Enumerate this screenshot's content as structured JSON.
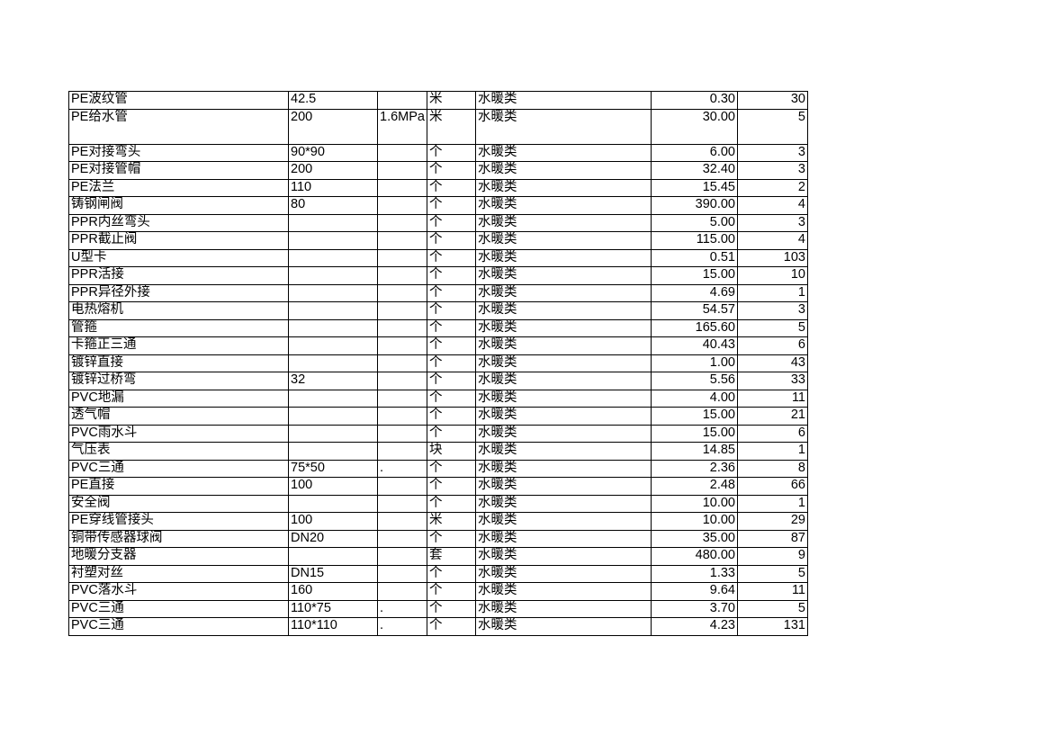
{
  "rows": [
    [
      "PE波纹管",
      "42.5",
      "",
      "米",
      "水暖类",
      "0.30",
      "30"
    ],
    [
      "PE给水管",
      "200",
      "1.6MPa",
      "米",
      "水暖类",
      "30.00",
      "5"
    ],
    [
      "PE对接弯头",
      "90*90",
      "",
      "个",
      "水暖类",
      "6.00",
      "3"
    ],
    [
      "PE对接管帽",
      "200",
      "",
      "个",
      "水暖类",
      "32.40",
      "3"
    ],
    [
      "PE法兰",
      "110",
      "",
      "个",
      "水暖类",
      "15.45",
      "2"
    ],
    [
      "铸钢闸阀",
      "80",
      "",
      "个",
      "水暖类",
      "390.00",
      "4"
    ],
    [
      "PPR内丝弯头",
      "",
      "",
      "个",
      "水暖类",
      "5.00",
      "3"
    ],
    [
      "PPR截止阀",
      "",
      "",
      "个",
      "水暖类",
      "115.00",
      "4"
    ],
    [
      "U型卡",
      "",
      "",
      "个",
      "水暖类",
      "0.51",
      "103"
    ],
    [
      "PPR活接",
      "",
      "",
      "个",
      "水暖类",
      "15.00",
      "10"
    ],
    [
      "PPR异径外接",
      "",
      "",
      "个",
      "水暖类",
      "4.69",
      "1"
    ],
    [
      "电热熔机",
      "",
      "",
      "个",
      "水暖类",
      "54.57",
      "3"
    ],
    [
      "管箍",
      "",
      "",
      "个",
      "水暖类",
      "165.60",
      "5"
    ],
    [
      "卡箍正三通",
      "",
      "",
      "个",
      "水暖类",
      "40.43",
      "6"
    ],
    [
      "镀锌直接",
      "",
      "",
      "个",
      "水暖类",
      "1.00",
      "43"
    ],
    [
      "镀锌过桥弯",
      "32",
      "",
      "个",
      "水暖类",
      "5.56",
      "33"
    ],
    [
      "PVC地漏",
      "",
      "",
      "个",
      "水暖类",
      "4.00",
      "11"
    ],
    [
      "透气帽",
      "",
      "",
      "个",
      "水暖类",
      "15.00",
      "21"
    ],
    [
      "PVC雨水斗",
      "",
      "",
      "个",
      "水暖类",
      "15.00",
      "6"
    ],
    [
      "气压表",
      "",
      "",
      "块",
      "水暖类",
      "14.85",
      "1"
    ],
    [
      "PVC三通",
      "75*50",
      ".",
      "个",
      "水暖类",
      "2.36",
      "8"
    ],
    [
      "PE直接",
      "100",
      "",
      "个",
      "水暖类",
      "2.48",
      "66"
    ],
    [
      "安全阀",
      "",
      "",
      "个",
      "水暖类",
      "10.00",
      "1"
    ],
    [
      "PE穿线管接头",
      "100",
      "",
      "米",
      "水暖类",
      "10.00",
      "29"
    ],
    [
      "铜带传感器球阀",
      "DN20",
      "",
      "个",
      "水暖类",
      "35.00",
      "87"
    ],
    [
      "地暖分支器",
      "",
      "",
      "套",
      "水暖类",
      "480.00",
      "9"
    ],
    [
      "衬塑对丝",
      "DN15",
      "",
      "个",
      "水暖类",
      "1.33",
      "5"
    ],
    [
      "PVC落水斗",
      "160",
      "",
      "个",
      "水暖类",
      "9.64",
      "11"
    ],
    [
      "PVC三通",
      "110*75",
      ".",
      "个",
      "水暖类",
      "3.70",
      "5"
    ],
    [
      "PVC三通",
      "110*110",
      ".",
      "个",
      "水暖类",
      "4.23",
      "131"
    ]
  ]
}
